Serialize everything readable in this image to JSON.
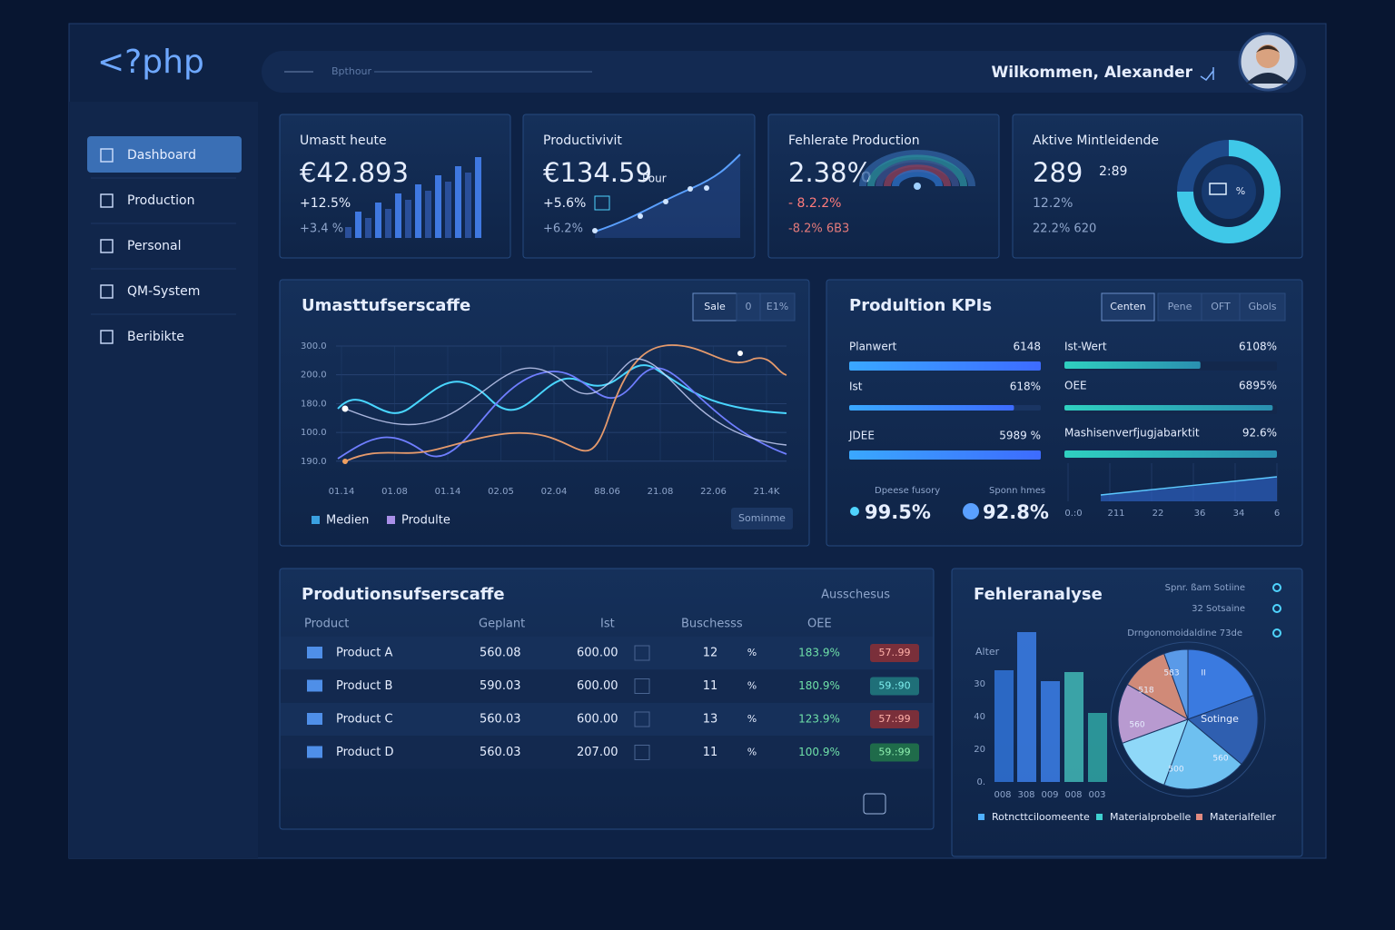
{
  "header": {
    "logo": "<?php",
    "search": "Bpthour",
    "welcome": "Wilkommen, Alexander"
  },
  "sidebar": [
    "Dashboard",
    "Production",
    "Personal",
    "QM-System",
    "Beribikte"
  ],
  "kpis": [
    {
      "title": "Umastt heute",
      "value": "€42.893",
      "change": "+12.5%",
      "sub": "+3.4 %"
    },
    {
      "title": "Productivivit",
      "value": "€134.59",
      "unit": "Pour",
      "change": "+5.6%",
      "sub": "+6.2%"
    },
    {
      "title": "Fehlerate Production",
      "value": "2.38%",
      "change": "- 8.2.2%",
      "sub": "-8.2% 6B3"
    },
    {
      "title": "Aktive Mintleidende",
      "value": "289",
      "unit": "2:89",
      "change": "12.2%",
      "sub": "22.2% 620",
      "center": "%"
    }
  ],
  "sales_chart": {
    "title": "Umasttufserscaffe",
    "tabs": [
      "Sale",
      "0",
      "E1%"
    ],
    "y_labels": [
      "300.0",
      "200.0",
      "180.0",
      "100.0",
      "190.0"
    ],
    "x_labels": [
      "01.14",
      "01.08",
      "01.14",
      "02.05",
      "02.04",
      "88.06",
      "21.08",
      "22.06",
      "21.4K"
    ],
    "legend": [
      "Medien",
      "Produlte"
    ],
    "button": "Sominme"
  },
  "kpi_panel": {
    "title": "Produltion KPIs",
    "tabs": [
      "Centen",
      "Pene",
      "OFT",
      "Gbols"
    ],
    "left": [
      {
        "label": "Planwert",
        "value": "6148"
      },
      {
        "label": "Ist",
        "value": "618%"
      },
      {
        "label": "JDEE",
        "value": "5989 %"
      }
    ],
    "right": [
      {
        "label": "Ist-Wert",
        "value": "6108%"
      },
      {
        "label": "OEE",
        "value": "6895%"
      },
      {
        "label": "Mashisenverfjugjabarktit",
        "value": "92.6%"
      }
    ],
    "stats": [
      {
        "label": "Dpeese fusory",
        "value": "99.5%"
      },
      {
        "label": "Sponn hmes",
        "value": "92.8%"
      }
    ],
    "x_labels": [
      "0.:0",
      "211",
      "22",
      "36",
      "34",
      "6"
    ]
  },
  "table": {
    "title": "Produtionsufserscaffe",
    "filter": "Ausschesus",
    "columns": [
      "Product",
      "Geplant",
      "Ist",
      "Buschesss",
      "OEE"
    ],
    "rows": [
      [
        "Product A",
        "560.08",
        "600.00",
        "12",
        "%",
        "183.9%",
        "57..99"
      ],
      [
        "Product B",
        "590.03",
        "600.00",
        "11",
        "%",
        "180.9%",
        "59.:90"
      ],
      [
        "Product C",
        "560.03",
        "600.00",
        "13",
        "%",
        "123.9%",
        "57.:99"
      ],
      [
        "Product D",
        "560.03",
        "207.00",
        "11",
        "%",
        "100.9%",
        "59.:99"
      ]
    ]
  },
  "errors": {
    "title": "Fehleranalyse",
    "legend_top": [
      "Spnr. ßam Sotiine",
      "32 Sotsaine",
      "Drngonomoidaldine 73de"
    ],
    "axis_label": "Alter",
    "y_labels": [
      "30",
      "40",
      "20",
      "0."
    ],
    "x_labels": [
      "008",
      "308",
      "009",
      "008",
      "003"
    ],
    "pie_labels": [
      "583",
      "II",
      "518",
      "560",
      "Sotinge",
      "560",
      "500"
    ],
    "legend": [
      "Rotncttciloomeente",
      "Materialprobelle",
      "Materialfeller"
    ]
  }
}
